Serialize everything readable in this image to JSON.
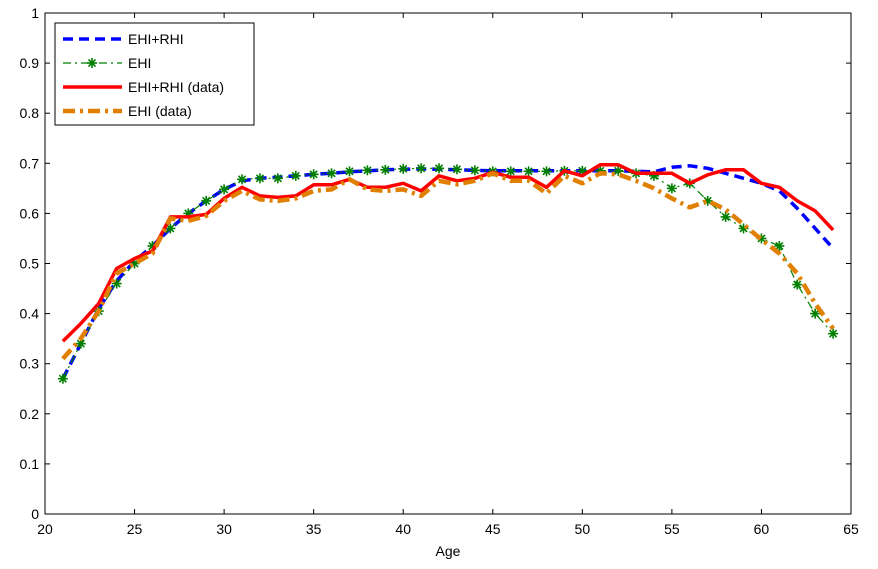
{
  "chart_data": {
    "type": "line",
    "title": "",
    "xlabel": "Age",
    "ylabel": "",
    "xlim": [
      20,
      65
    ],
    "ylim": [
      0,
      1
    ],
    "xticks": [
      20,
      25,
      30,
      35,
      40,
      45,
      50,
      55,
      60,
      65
    ],
    "yticks": [
      0,
      0.1,
      0.2,
      0.3,
      0.4,
      0.5,
      0.6,
      0.7,
      0.8,
      0.9,
      1
    ],
    "grid": false,
    "legend_position": "top-left",
    "x": [
      21,
      22,
      23,
      24,
      25,
      26,
      27,
      28,
      29,
      30,
      31,
      32,
      33,
      34,
      35,
      36,
      37,
      38,
      39,
      40,
      41,
      42,
      43,
      44,
      45,
      46,
      47,
      48,
      49,
      50,
      51,
      52,
      53,
      54,
      55,
      56,
      57,
      58,
      59,
      60,
      61,
      62,
      63,
      64
    ],
    "series": [
      {
        "name": "EHI+RHI",
        "color": "#0000ff",
        "style": "dashed",
        "values": [
          0.27,
          0.34,
          0.41,
          0.465,
          0.505,
          0.535,
          0.57,
          0.6,
          0.625,
          0.648,
          0.665,
          0.67,
          0.672,
          0.675,
          0.678,
          0.68,
          0.683,
          0.685,
          0.687,
          0.688,
          0.689,
          0.688,
          0.687,
          0.686,
          0.685,
          0.685,
          0.685,
          0.685,
          0.685,
          0.685,
          0.685,
          0.685,
          0.684,
          0.683,
          0.692,
          0.695,
          0.69,
          0.68,
          0.67,
          0.66,
          0.645,
          0.61,
          0.57,
          0.53
        ]
      },
      {
        "name": "EHI",
        "color": "#007f00",
        "style": "dashdot-star",
        "values": [
          0.27,
          0.34,
          0.405,
          0.46,
          0.5,
          0.535,
          0.57,
          0.6,
          0.625,
          0.648,
          0.668,
          0.67,
          0.67,
          0.675,
          0.678,
          0.68,
          0.684,
          0.686,
          0.687,
          0.689,
          0.69,
          0.69,
          0.688,
          0.686,
          0.684,
          0.684,
          0.684,
          0.684,
          0.685,
          0.685,
          0.685,
          0.685,
          0.68,
          0.675,
          0.65,
          0.66,
          0.625,
          0.593,
          0.57,
          0.55,
          0.535,
          0.458,
          0.4,
          0.36
        ]
      },
      {
        "name": "EHI+RHI (data)",
        "color": "#ff0000",
        "style": "solid",
        "values": [
          0.345,
          0.38,
          0.42,
          0.49,
          0.51,
          0.525,
          0.593,
          0.593,
          0.598,
          0.63,
          0.652,
          0.635,
          0.632,
          0.635,
          0.657,
          0.657,
          0.668,
          0.652,
          0.652,
          0.66,
          0.645,
          0.675,
          0.665,
          0.67,
          0.682,
          0.672,
          0.672,
          0.652,
          0.685,
          0.675,
          0.697,
          0.697,
          0.68,
          0.68,
          0.68,
          0.66,
          0.677,
          0.687,
          0.687,
          0.66,
          0.652,
          0.625,
          0.605,
          0.567
        ]
      },
      {
        "name": "EHI (data)",
        "color": "#e07f00",
        "style": "dashdot",
        "values": [
          0.31,
          0.35,
          0.405,
          0.48,
          0.5,
          0.52,
          0.59,
          0.585,
          0.595,
          0.625,
          0.645,
          0.628,
          0.625,
          0.63,
          0.645,
          0.648,
          0.668,
          0.648,
          0.645,
          0.648,
          0.635,
          0.665,
          0.658,
          0.665,
          0.68,
          0.665,
          0.665,
          0.64,
          0.675,
          0.66,
          0.68,
          0.678,
          0.665,
          0.65,
          0.63,
          0.612,
          0.625,
          0.608,
          0.578,
          0.548,
          0.52,
          0.48,
          0.42,
          0.37
        ]
      }
    ]
  }
}
